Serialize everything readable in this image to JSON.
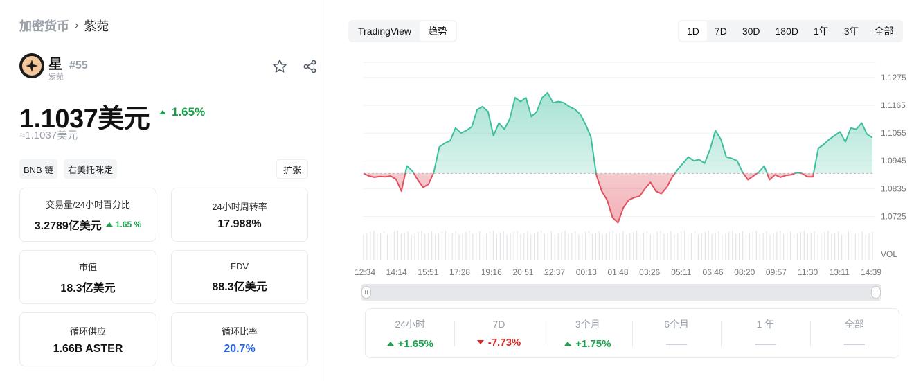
{
  "breadcrumb": {
    "root": "加密货币",
    "current": "紫菀"
  },
  "token": {
    "name": "星",
    "sub": "紫菀",
    "rank": "#55"
  },
  "price": {
    "value": "1.1037美元",
    "change": "1.65%",
    "approx": "≈1.1037美元"
  },
  "tags": [
    "BNB 链",
    "右美托咪定"
  ],
  "expand_label": "扩张",
  "stats": {
    "volume": {
      "label": "交易量/24小时百分比",
      "value": "3.2789亿美元",
      "change": "1.65 %"
    },
    "turnover": {
      "label": "24小时周转率",
      "value": "17.988%"
    },
    "market_cap": {
      "label": "市值",
      "value": "18.3亿美元"
    },
    "fdv": {
      "label": "FDV",
      "value": "88.3亿美元"
    },
    "circ_supply": {
      "label": "循环供应",
      "value": "1.66B ASTER"
    },
    "circ_ratio": {
      "label": "循环比率",
      "value": "20.7%"
    }
  },
  "chart_tabs": [
    "TradingView",
    "趋势"
  ],
  "range_tabs": [
    "1D",
    "7D",
    "30D",
    "180D",
    "1年",
    "3年",
    "全部"
  ],
  "active_range": "1D",
  "colors": {
    "up": "#16a34a",
    "down": "#dc2626",
    "line_up": "#3dbf9e",
    "line_down": "#e0505e",
    "blue": "#2563eb"
  },
  "chart_data": {
    "type": "area",
    "baseline": 1.0895,
    "ylim": [
      1.0685,
      1.1335
    ],
    "y_ticks": [
      "1.1275",
      "1.1165",
      "1.1055",
      "1.0945",
      "1.0835",
      "1.0725"
    ],
    "vol_label": "VOL",
    "x_ticks": [
      "12:34",
      "14:14",
      "15:51",
      "17:28",
      "19:16",
      "20:51",
      "22:37",
      "00:13",
      "01:48",
      "03:26",
      "05:11",
      "06:46",
      "08:20",
      "09:57",
      "11:30",
      "13:11",
      "14:39"
    ],
    "values": [
      1.0895,
      1.0885,
      1.088,
      1.0883,
      1.0882,
      1.0885,
      1.0872,
      1.0825,
      1.0925,
      1.0905,
      1.087,
      1.084,
      1.0852,
      1.09,
      1.1,
      1.1015,
      1.1025,
      1.1075,
      1.1055,
      1.1065,
      1.108,
      1.1148,
      1.116,
      1.114,
      1.1045,
      1.1095,
      1.107,
      1.111,
      1.1195,
      1.118,
      1.1195,
      1.112,
      1.114,
      1.1195,
      1.1215,
      1.1175,
      1.118,
      1.1175,
      1.116,
      1.115,
      1.113,
      1.109,
      1.104,
      1.089,
      1.0825,
      1.079,
      1.072,
      1.07,
      1.076,
      1.079,
      1.08,
      1.0805,
      1.0835,
      1.086,
      1.0825,
      1.0815,
      1.084,
      1.088,
      1.091,
      1.0935,
      1.096,
      1.0945,
      1.095,
      1.0935,
      1.099,
      1.1065,
      1.103,
      1.096,
      1.0955,
      1.0945,
      1.09,
      1.087,
      1.0885,
      1.09,
      1.0925,
      1.087,
      1.089,
      1.088,
      1.0887,
      1.089,
      1.0898,
      1.0895,
      1.0882,
      1.0882,
      1.0995,
      1.101,
      1.103,
      1.1045,
      1.106,
      1.102,
      1.1075,
      1.107,
      1.1095,
      1.105,
      1.1037
    ]
  },
  "performance": [
    {
      "label": "24小时",
      "value": "+1.65%",
      "dir": "up"
    },
    {
      "label": "7D",
      "value": "-7.73%",
      "dir": "down"
    },
    {
      "label": "3个月",
      "value": "+1.75%",
      "dir": "up"
    },
    {
      "label": "6个月",
      "value": "——",
      "dir": "none"
    },
    {
      "label": "1 年",
      "value": "——",
      "dir": "none"
    },
    {
      "label": "全部",
      "value": "——",
      "dir": "none"
    }
  ]
}
